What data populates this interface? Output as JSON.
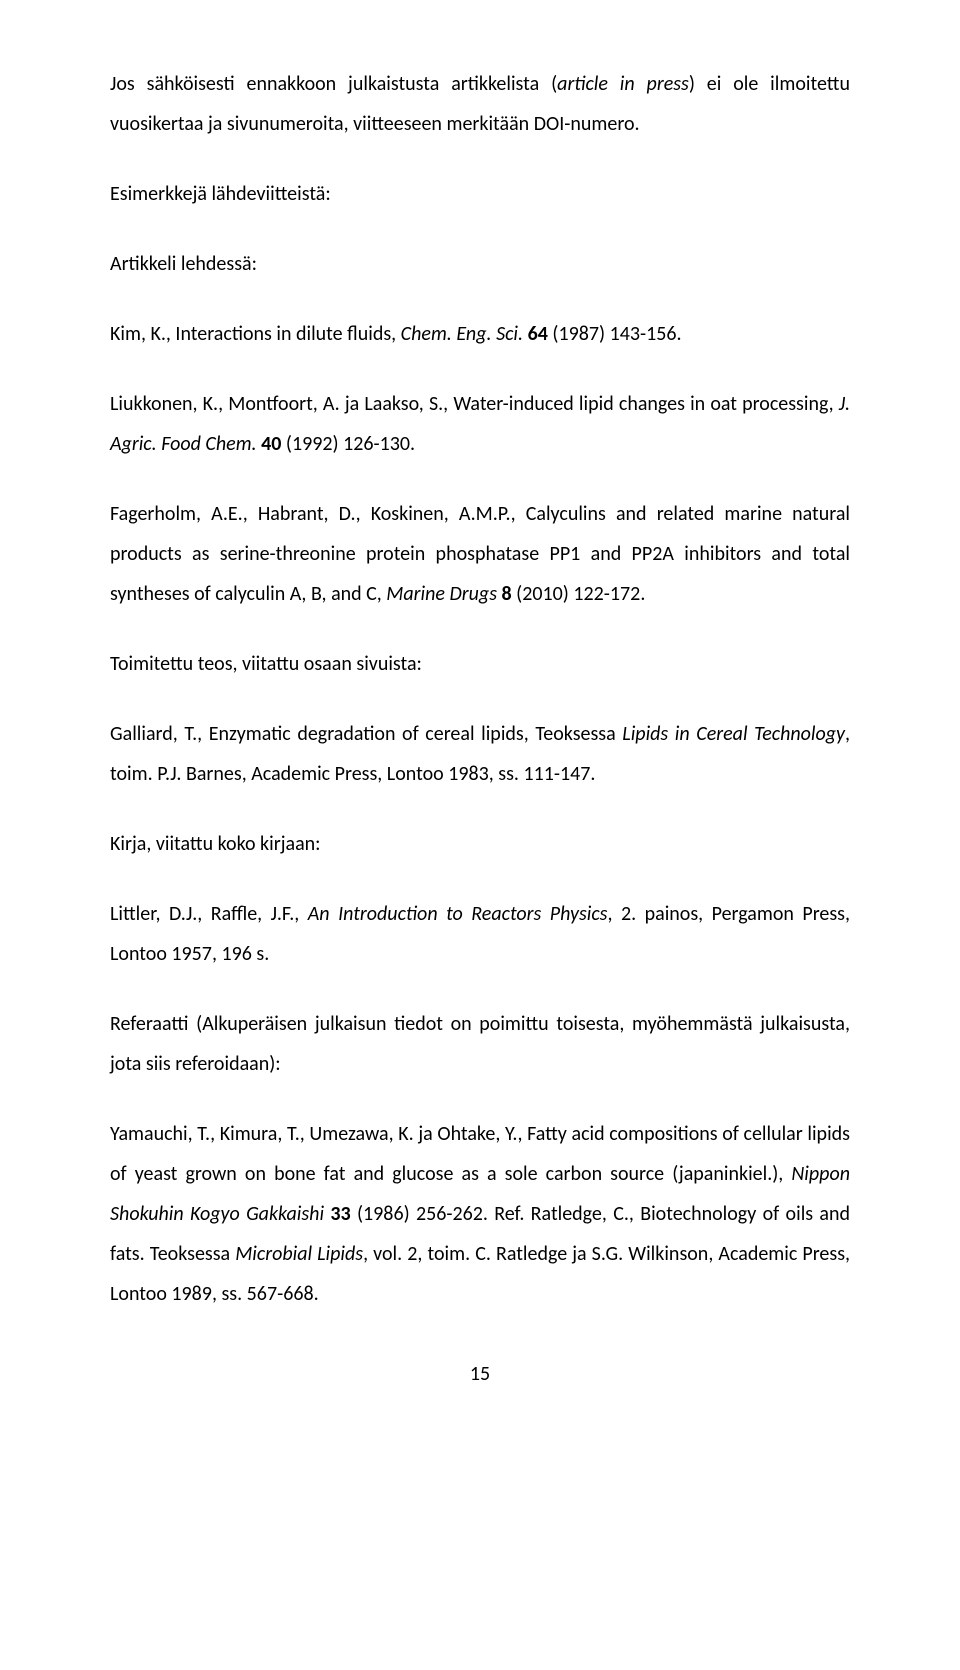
{
  "paragraphs": {
    "p1_a": "Jos sähköisesti ennakkoon julkaistusta artikkelista (",
    "p1_it": "article in press",
    "p1_b": ") ei ole ilmoitettu vuosikertaa ja sivunumeroita, viitteeseen merkitään DOI-numero.",
    "p2": "Esimerkkejä lähdeviitteistä:",
    "p3": "Artikkeli lehdessä:",
    "p4_a": "Kim, K., Interactions in dilute fluids, ",
    "p4_it": "Chem. Eng. Sci.",
    "p4_b": " ",
    "p4_bold": "64",
    "p4_c": " (1987) 143-156.",
    "p5_a": "Liukkonen, K., Montfoort, A. ja Laakso, S., Water-induced lipid changes in oat processing, ",
    "p5_it": "J. Agric. Food Chem.",
    "p5_b": " ",
    "p5_bold": "40",
    "p5_c": " (1992) 126-130.",
    "p6_a": "Fagerholm, A.E., Habrant, D., Koskinen, A.M.P., Calyculins and related marine natural products as serine-threonine protein phosphatase PP1 and PP2A inhibitors and total syntheses of calyculin A, B, and C, ",
    "p6_it": "Marine Drugs",
    "p6_b": " ",
    "p6_bold": "8",
    "p6_c": " (2010) 122-172.",
    "p7": "Toimitettu teos, viitattu osaan sivuista:",
    "p8_a": "Galliard, T., Enzymatic degradation of cereal lipids, Teoksessa ",
    "p8_it": "Lipids in Cereal Technology",
    "p8_b": ", toim. P.J. Barnes, Academic Press, Lontoo 1983, ss. 111-147.",
    "p9": "Kirja, viitattu koko kirjaan:",
    "p10_a": "Littler, D.J., Raffle, J.F., ",
    "p10_it": "An Introduction to Reactors Physics",
    "p10_b": ", 2. painos, Pergamon Press, Lontoo 1957, 196 s.",
    "p11": "Referaatti (Alkuperäisen julkaisun tiedot on poimittu toisesta, myöhemmästä julkaisusta, jota siis referoidaan):",
    "p12_a": "Yamauchi, T., Kimura, T., Umezawa, K. ja Ohtake, Y., Fatty acid compositions of cellular lipids of yeast grown on bone fat and glucose as a sole carbon source (japaninkiel.), ",
    "p12_it1": "Nippon Shokuhin Kogyo Gakkaishi",
    "p12_b": " ",
    "p12_bold": "33",
    "p12_c": " (1986) 256-262. Ref. Ratledge, C., Biotechnology of oils and fats. Teoksessa ",
    "p12_it2": "Microbial Lipids",
    "p12_d": ", vol. 2, toim. C. Ratledge ja S.G. Wilkinson, Academic Press, Lontoo 1989, ss. 567-668."
  },
  "page_number": "15"
}
